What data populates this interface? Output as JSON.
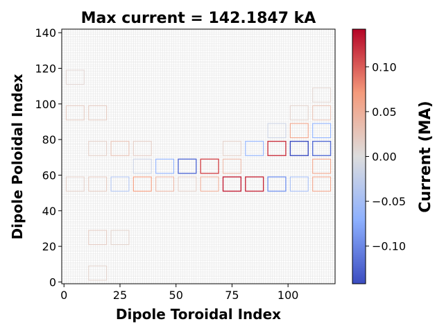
{
  "chart_data": {
    "type": "heatmap",
    "title": "Max current = 142.1847 kA",
    "xlabel": "Dipole Toroidal Index",
    "ylabel": "Dipole Poloidal Index",
    "xlim": [
      -1,
      121
    ],
    "ylim": [
      -1,
      142
    ],
    "x_ticks": [
      0,
      25,
      50,
      75,
      100
    ],
    "y_ticks": [
      0,
      20,
      40,
      60,
      80,
      100,
      120,
      140
    ],
    "colorbar": {
      "label": "Current (MA)",
      "range": [
        -0.142,
        0.142
      ],
      "ticks": [
        0.1,
        0.05,
        0.0,
        -0.05,
        -0.1
      ],
      "tick_labels": [
        "0.10",
        "0.05",
        "0.00",
        "−0.05",
        "−0.10"
      ],
      "colormap": "coolwarm",
      "colors": [
        "#3b4cc0",
        "#8db0fe",
        "#dddddd",
        "#f49a7b",
        "#b40426"
      ]
    },
    "grid": true,
    "grid_color": "#e3e3e3",
    "loops": [
      {
        "x": [
          1,
          9
        ],
        "y": [
          91,
          99
        ],
        "value": 0.02
      },
      {
        "x": [
          11,
          19
        ],
        "y": [
          91,
          99
        ],
        "value": 0.02
      },
      {
        "x": [
          111,
          119
        ],
        "y": [
          91,
          99
        ],
        "value": 0.03
      },
      {
        "x": [
          101,
          109
        ],
        "y": [
          91,
          99
        ],
        "value": 0.012
      },
      {
        "x": [
          101,
          109
        ],
        "y": [
          81,
          89
        ],
        "value": 0.06
      },
      {
        "x": [
          111,
          119
        ],
        "y": [
          81,
          89
        ],
        "value": -0.07
      },
      {
        "x": [
          91,
          99
        ],
        "y": [
          81,
          89
        ],
        "value": -0.015
      },
      {
        "x": [
          81,
          89
        ],
        "y": [
          71,
          79
        ],
        "value": -0.07
      },
      {
        "x": [
          91,
          99
        ],
        "y": [
          71,
          79
        ],
        "value": 0.12
      },
      {
        "x": [
          101,
          109
        ],
        "y": [
          71,
          79
        ],
        "value": -0.142
      },
      {
        "x": [
          111,
          119
        ],
        "y": [
          71,
          79
        ],
        "value": -0.12
      },
      {
        "x": [
          71,
          79
        ],
        "y": [
          71,
          79
        ],
        "value": 0.015
      },
      {
        "x": [
          11,
          19
        ],
        "y": [
          71,
          79
        ],
        "value": 0.015
      },
      {
        "x": [
          21,
          29
        ],
        "y": [
          71,
          79
        ],
        "value": 0.03
      },
      {
        "x": [
          31,
          39
        ],
        "y": [
          71,
          79
        ],
        "value": 0.018
      },
      {
        "x": [
          41,
          49
        ],
        "y": [
          61,
          69
        ],
        "value": -0.07
      },
      {
        "x": [
          51,
          59
        ],
        "y": [
          61,
          69
        ],
        "value": -0.12
      },
      {
        "x": [
          61,
          69
        ],
        "y": [
          61,
          69
        ],
        "value": 0.11
      },
      {
        "x": [
          71,
          79
        ],
        "y": [
          61,
          69
        ],
        "value": 0.04
      },
      {
        "x": [
          111,
          119
        ],
        "y": [
          61,
          69
        ],
        "value": 0.06
      },
      {
        "x": [
          31,
          39
        ],
        "y": [
          61,
          69
        ],
        "value": -0.015
      },
      {
        "x": [
          21,
          29
        ],
        "y": [
          51,
          59
        ],
        "value": -0.04
      },
      {
        "x": [
          31,
          39
        ],
        "y": [
          51,
          59
        ],
        "value": 0.07
      },
      {
        "x": [
          41,
          49
        ],
        "y": [
          51,
          59
        ],
        "value": 0.04
      },
      {
        "x": [
          61,
          69
        ],
        "y": [
          51,
          59
        ],
        "value": 0.05
      },
      {
        "x": [
          71,
          79
        ],
        "y": [
          51,
          59
        ],
        "value": 0.13
      },
      {
        "x": [
          81,
          89
        ],
        "y": [
          51,
          59
        ],
        "value": 0.125
      },
      {
        "x": [
          91,
          99
        ],
        "y": [
          51,
          59
        ],
        "value": -0.09
      },
      {
        "x": [
          101,
          109
        ],
        "y": [
          51,
          59
        ],
        "value": -0.05
      },
      {
        "x": [
          111,
          119
        ],
        "y": [
          51,
          59
        ],
        "value": 0.06
      },
      {
        "x": [
          11,
          19
        ],
        "y": [
          51,
          59
        ],
        "value": 0.02
      },
      {
        "x": [
          51,
          59
        ],
        "y": [
          51,
          59
        ],
        "value": 0.015
      },
      {
        "x": [
          1,
          9
        ],
        "y": [
          51,
          59
        ],
        "value": 0.015
      },
      {
        "x": [
          11,
          19
        ],
        "y": [
          21,
          29
        ],
        "value": 0.018
      },
      {
        "x": [
          21,
          29
        ],
        "y": [
          21,
          29
        ],
        "value": 0.012
      },
      {
        "x": [
          11,
          19
        ],
        "y": [
          1,
          9
        ],
        "value": 0.012
      },
      {
        "x": [
          111,
          119
        ],
        "y": [
          101,
          109
        ],
        "value": 0.01
      },
      {
        "x": [
          1,
          9
        ],
        "y": [
          111,
          119
        ],
        "value": 0.008
      }
    ]
  }
}
